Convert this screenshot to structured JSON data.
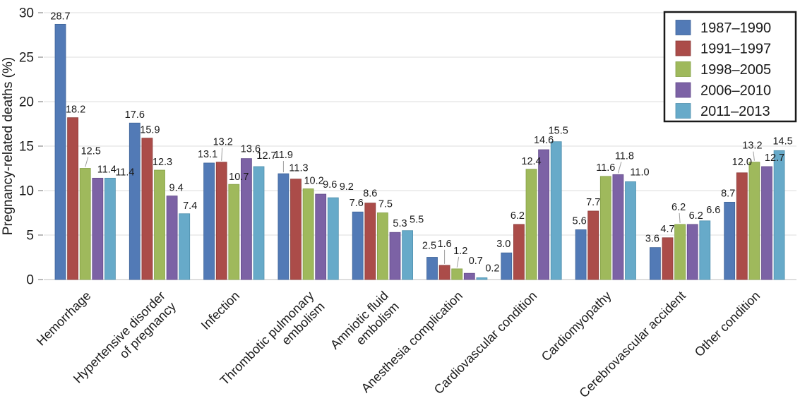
{
  "chart_data": {
    "type": "bar",
    "title": "",
    "xlabel": "",
    "ylabel": "Pregnancy-related deaths (%)",
    "ylim": [
      0,
      30
    ],
    "yticks": [
      0,
      5,
      10,
      15,
      20,
      25,
      30
    ],
    "grid": true,
    "legend_position": "upper right",
    "data_labels": true,
    "categories": [
      "Hemorrhage",
      "Hypertensive disorder\nof pregnancy",
      "Infection",
      "Thrombotic pulmonary\nembolism",
      "Amniotic fluid\nembolism",
      "Anesthesia complication",
      "Cardiovascular condition",
      "Cardiomyopathy",
      "Cerebrovascular accident",
      "Other condition"
    ],
    "series": [
      {
        "name": "1987–1990",
        "color": "#527ab6",
        "edge": "#3e6398",
        "values": [
          28.7,
          17.6,
          13.1,
          11.9,
          7.6,
          2.5,
          3.0,
          5.6,
          3.6,
          8.7
        ]
      },
      {
        "name": "1991–1997",
        "color": "#ab4c49",
        "edge": "#8c3b39",
        "values": [
          18.2,
          15.9,
          13.2,
          11.3,
          8.6,
          1.6,
          6.2,
          7.7,
          4.7,
          12.0
        ]
      },
      {
        "name": "1998–2005",
        "color": "#9fb95c",
        "edge": "#84a046",
        "values": [
          12.5,
          12.3,
          10.7,
          10.2,
          7.5,
          1.2,
          12.4,
          11.6,
          6.2,
          13.2
        ]
      },
      {
        "name": "2006–2010",
        "color": "#7c62a5",
        "edge": "#644c8a",
        "values": [
          11.4,
          9.4,
          13.6,
          9.6,
          5.3,
          0.7,
          14.6,
          11.8,
          6.2,
          12.7
        ]
      },
      {
        "name": "2011–2013",
        "color": "#67aac9",
        "edge": "#5090ae",
        "values": [
          11.4,
          7.4,
          12.7,
          9.2,
          5.5,
          0.2,
          15.5,
          11.0,
          6.6,
          14.5
        ]
      }
    ],
    "label_offsets": [
      [
        [
          0,
          -7,
          0
        ],
        [
          4,
          -7,
          0
        ],
        [
          8,
          -20,
          1
        ],
        [
          13,
          -8,
          0
        ],
        [
          21,
          -4,
          0
        ]
      ],
      [
        [
          0,
          -7,
          0
        ],
        [
          4,
          -7,
          0
        ],
        [
          4,
          -7,
          0
        ],
        [
          6,
          -7,
          0
        ],
        [
          8,
          -7,
          0
        ]
      ],
      [
        [
          -2,
          -8,
          0
        ],
        [
          2,
          -24,
          1
        ],
        [
          7,
          -6,
          0
        ],
        [
          6,
          -9,
          0
        ],
        [
          11,
          -11,
          0
        ]
      ],
      [
        [
          0,
          -22,
          1
        ],
        [
          4,
          -11,
          0
        ],
        [
          8,
          -7,
          0
        ],
        [
          13,
          -9,
          0
        ],
        [
          19,
          -11,
          0
        ]
      ],
      [
        [
          -2,
          -8,
          0
        ],
        [
          0,
          -9,
          0
        ],
        [
          4,
          -8,
          0
        ],
        [
          7,
          -8,
          0
        ],
        [
          13,
          -11,
          0
        ]
      ],
      [
        [
          -4,
          -12,
          0
        ],
        [
          0,
          -26,
          1
        ],
        [
          5,
          -21,
          1
        ],
        [
          9,
          -13,
          0
        ],
        [
          15,
          -9,
          0
        ]
      ],
      [
        [
          -4,
          -8,
          0
        ],
        [
          -2,
          -8,
          0
        ],
        [
          0,
          -7,
          0
        ],
        [
          0,
          -9,
          0
        ],
        [
          3,
          -11,
          0
        ]
      ],
      [
        [
          -2,
          -8,
          0
        ],
        [
          0,
          -8,
          0
        ],
        [
          0,
          -8,
          0
        ],
        [
          9,
          -22,
          1
        ],
        [
          13,
          -9,
          0
        ]
      ],
      [
        [
          -4,
          -8,
          0
        ],
        [
          0,
          -8,
          0
        ],
        [
          -2,
          -20,
          1
        ],
        [
          5,
          -8,
          0
        ],
        [
          12,
          -11,
          0
        ]
      ],
      [
        [
          -2,
          -8,
          0
        ],
        [
          0,
          -11,
          0
        ],
        [
          -3,
          -19,
          1
        ],
        [
          11,
          -8,
          0
        ],
        [
          5,
          -9,
          0
        ]
      ]
    ],
    "colors": {
      "text": "#1a1a1a",
      "grid": "#dedede",
      "axis_line": "#c9c9c9",
      "tick": "#8c8c8c",
      "leader": "#9e9e9e",
      "legend_border": "#1a1a1a",
      "background": "#ffffff"
    }
  }
}
